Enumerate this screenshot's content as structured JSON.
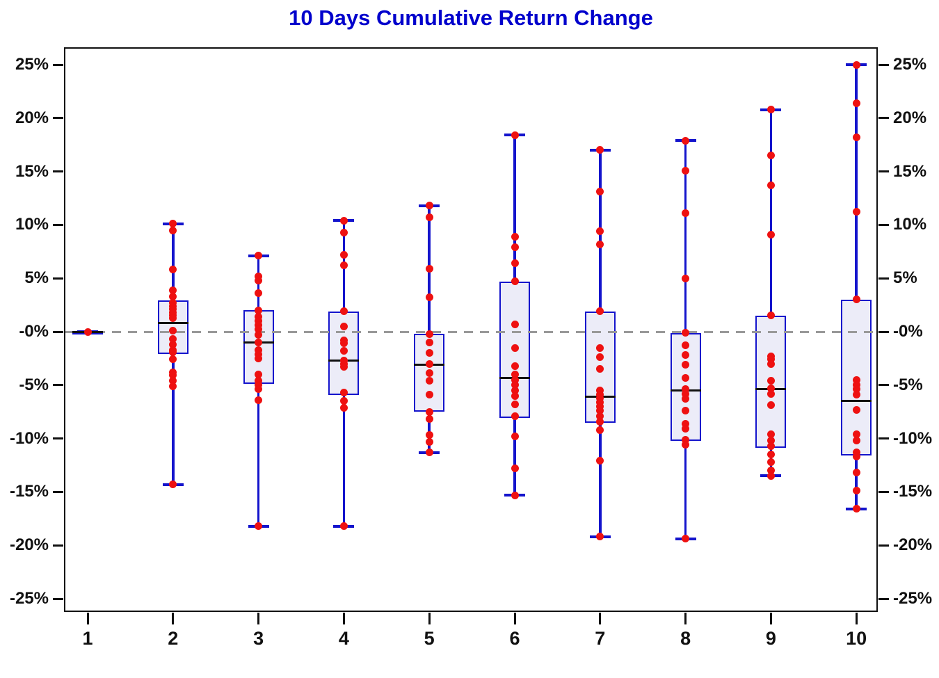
{
  "title": "10 Days Cumulative Return Change",
  "colors": {
    "title": "#0000CC",
    "box_border": "#1414CC",
    "box_fill": "#ECECF8",
    "whisker": "#1414CC",
    "median": "#111111",
    "point": "#EE1111",
    "zero_line": "#999999",
    "axis": "#111111"
  },
  "chart_data": {
    "type": "boxplot",
    "title": "10 Days Cumulative Return Change",
    "xlabel": "",
    "ylabel": "",
    "x_categories": [
      "1",
      "2",
      "3",
      "4",
      "5",
      "6",
      "7",
      "8",
      "9",
      "10"
    ],
    "y_tick_values": [
      25,
      20,
      15,
      10,
      5,
      0,
      -5,
      -10,
      -15,
      -20,
      -25
    ],
    "y_tick_labels": [
      "25%",
      "20%",
      "15%",
      "10%",
      "5%",
      "-0%",
      "-5%",
      "-10%",
      "-15%",
      "-20%",
      "-25%"
    ],
    "y_axis_labels_on_both_sides": true,
    "ylim": [
      -26.3,
      26.6
    ],
    "grid": false,
    "zero_reference_line": {
      "value": 0,
      "style": "dashed",
      "color": "#999999"
    },
    "overlay": "scatter-points",
    "series": [
      {
        "x": "1",
        "whisker_low": 0,
        "q1": 0,
        "median": 0,
        "q3": 0,
        "whisker_high": 0,
        "points": [
          0
        ]
      },
      {
        "x": "2",
        "whisker_low": -14.3,
        "q1": -2.1,
        "median": 0.8,
        "q3": 2.9,
        "whisker_high": 10.1,
        "points": [
          10.1,
          9.5,
          5.8,
          3.9,
          3.3,
          2.7,
          2.4,
          2.1,
          1.8,
          1.5,
          1.3,
          0.1,
          -0.7,
          -1.2,
          -1.7,
          -1.9,
          -2.6,
          -3.8,
          -4.1,
          -4.6,
          -5.1,
          -14.3
        ]
      },
      {
        "x": "3",
        "whisker_low": -18.2,
        "q1": -4.9,
        "median": -1.0,
        "q3": 2.0,
        "whisker_high": 7.1,
        "points": [
          7.1,
          5.2,
          4.8,
          3.6,
          2.0,
          1.4,
          1.0,
          0.6,
          0.2,
          -0.3,
          -1.0,
          -1.7,
          -2.1,
          -2.5,
          -4.0,
          -4.6,
          -5.0,
          -5.4,
          -6.4,
          -18.2
        ]
      },
      {
        "x": "4",
        "whisker_low": -18.2,
        "q1": -5.9,
        "median": -2.7,
        "q3": 1.9,
        "whisker_high": 10.4,
        "points": [
          10.4,
          9.3,
          7.2,
          6.2,
          1.9,
          0.5,
          -0.8,
          -1.1,
          -1.8,
          -2.7,
          -3.0,
          -3.3,
          -5.7,
          -6.5,
          -7.1,
          -18.2
        ]
      },
      {
        "x": "5",
        "whisker_low": -11.3,
        "q1": -7.5,
        "median": -3.1,
        "q3": -0.2,
        "whisker_high": 11.8,
        "points": [
          11.8,
          10.7,
          5.9,
          3.2,
          -0.2,
          -1.0,
          -2.0,
          -3.0,
          -3.9,
          -4.6,
          -5.9,
          -7.5,
          -8.2,
          -9.7,
          -10.3,
          -11.3
        ]
      },
      {
        "x": "6",
        "whisker_low": -15.3,
        "q1": -8.1,
        "median": -4.3,
        "q3": 4.7,
        "whisker_high": 18.4,
        "points": [
          18.4,
          8.9,
          7.9,
          6.4,
          4.7,
          0.7,
          -1.5,
          -3.2,
          -4.0,
          -4.5,
          -5.0,
          -5.5,
          -6.0,
          -6.8,
          -7.9,
          -9.8,
          -12.8,
          -15.3
        ]
      },
      {
        "x": "7",
        "whisker_low": -19.2,
        "q1": -8.5,
        "median": -6.1,
        "q3": 1.9,
        "whisker_high": 17.0,
        "points": [
          17.0,
          13.1,
          9.4,
          8.2,
          1.9,
          -1.5,
          -2.4,
          -3.5,
          -5.5,
          -5.9,
          -6.2,
          -6.6,
          -7.0,
          -7.4,
          -7.9,
          -8.4,
          -9.2,
          -12.1,
          -19.2
        ]
      },
      {
        "x": "8",
        "whisker_low": -19.4,
        "q1": -10.2,
        "median": -5.5,
        "q3": -0.1,
        "whisker_high": 17.9,
        "points": [
          17.9,
          15.1,
          11.1,
          5.0,
          -0.1,
          -1.3,
          -2.2,
          -3.1,
          -4.3,
          -5.4,
          -5.8,
          -6.3,
          -7.4,
          -8.6,
          -9.1,
          -10.1,
          -10.6,
          -19.4
        ]
      },
      {
        "x": "9",
        "whisker_low": -13.5,
        "q1": -10.9,
        "median": -5.4,
        "q3": 1.5,
        "whisker_high": 20.8,
        "points": [
          20.8,
          16.5,
          13.7,
          9.1,
          1.5,
          -2.3,
          -2.6,
          -3.0,
          -4.6,
          -5.3,
          -5.8,
          -6.9,
          -9.6,
          -10.2,
          -10.7,
          -11.5,
          -12.2,
          -13.0,
          -13.5
        ]
      },
      {
        "x": "10",
        "whisker_low": -16.6,
        "q1": -11.6,
        "median": -6.5,
        "q3": 3.0,
        "whisker_high": 25.0,
        "points": [
          25.0,
          21.4,
          18.2,
          11.2,
          3.0,
          -4.5,
          -5.0,
          -5.4,
          -5.9,
          -7.3,
          -9.6,
          -10.2,
          -11.3,
          -11.7,
          -13.2,
          -14.9,
          -16.6
        ]
      }
    ]
  }
}
